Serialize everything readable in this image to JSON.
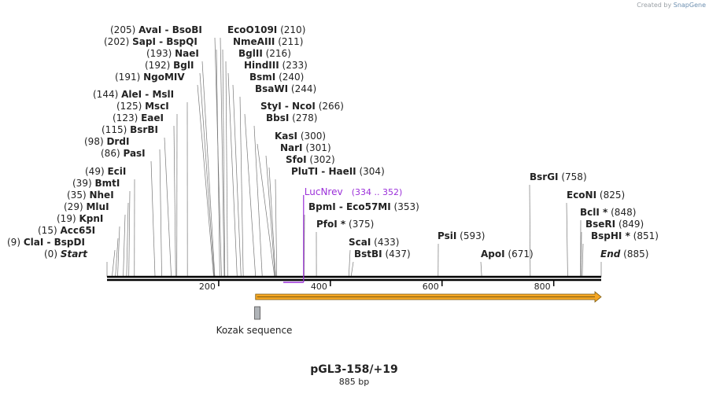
{
  "credit": {
    "prefix": "Created by",
    "brand": "SnapGene"
  },
  "plasmid": {
    "name": "pGL3-158/+19",
    "length_label": "885 bp"
  },
  "ruler": {
    "min": 0,
    "max": 885,
    "ticks": [
      200,
      400,
      600,
      800
    ]
  },
  "sites": [
    {
      "name": "AvaI",
      "pair": "BsoBI",
      "pos": 205,
      "label": "(205)"
    },
    {
      "name": "SapI",
      "pair": "BspQI",
      "pos": 202,
      "label": "(202)"
    },
    {
      "name": "NaeI",
      "pos": 193,
      "label": "(193)"
    },
    {
      "name": "BglI",
      "pos": 192,
      "label": "(192)"
    },
    {
      "name": "NgoMIV",
      "pos": 191,
      "label": "(191)"
    },
    {
      "name": "AleI",
      "pair": "MslI",
      "pos": 144,
      "label": "(144)"
    },
    {
      "name": "MscI",
      "pos": 125,
      "label": "(125)"
    },
    {
      "name": "EaeI",
      "pos": 123,
      "label": "(123)"
    },
    {
      "name": "BsrBI",
      "pos": 115,
      "label": "(115)"
    },
    {
      "name": "DrdI",
      "pos": 98,
      "label": "(98)"
    },
    {
      "name": "PasI",
      "pos": 86,
      "label": "(86)"
    },
    {
      "name": "EciI",
      "pos": 49,
      "label": "(49)"
    },
    {
      "name": "BmtI",
      "pos": 39,
      "label": "(39)"
    },
    {
      "name": "NheI",
      "pos": 35,
      "label": "(35)"
    },
    {
      "name": "MluI",
      "pos": 29,
      "label": "(29)"
    },
    {
      "name": "KpnI",
      "pos": 19,
      "label": "(19)"
    },
    {
      "name": "Acc65I",
      "pos": 15,
      "label": "(15)"
    },
    {
      "name": "ClaI",
      "pair": "BspDI",
      "pos": 9,
      "label": "(9)"
    },
    {
      "name": "Start",
      "pos": 0,
      "label": "(0)",
      "italic": true
    },
    {
      "name": "EcoO109I",
      "pos": 210,
      "label": "(210)"
    },
    {
      "name": "NmeAIII",
      "pos": 211,
      "label": "(211)"
    },
    {
      "name": "BglII",
      "pos": 216,
      "label": "(216)"
    },
    {
      "name": "HindIII",
      "pos": 233,
      "label": "(233)"
    },
    {
      "name": "BsmI",
      "pos": 240,
      "label": "(240)"
    },
    {
      "name": "BsaWI",
      "pos": 244,
      "label": "(244)"
    },
    {
      "name": "StyI",
      "pair": "NcoI",
      "pos": 266,
      "label": "(266)"
    },
    {
      "name": "BbsI",
      "pos": 278,
      "label": "(278)"
    },
    {
      "name": "KasI",
      "pos": 300,
      "label": "(300)"
    },
    {
      "name": "NarI",
      "pos": 301,
      "label": "(301)"
    },
    {
      "name": "SfoI",
      "pos": 302,
      "label": "(302)"
    },
    {
      "name": "PluTI",
      "pair": "HaeII",
      "pos": 304,
      "label": "(304)"
    },
    {
      "name": "BpmI",
      "pair": "Eco57MI",
      "pos": 353,
      "label": "(353)"
    },
    {
      "name": "PfoI *",
      "pos": 375,
      "label": "(375)"
    },
    {
      "name": "ScaI",
      "pos": 433,
      "label": "(433)"
    },
    {
      "name": "BstBI",
      "pos": 437,
      "label": "(437)"
    },
    {
      "name": "PsiI",
      "pos": 593,
      "label": "(593)"
    },
    {
      "name": "ApoI",
      "pos": 671,
      "label": "(671)"
    },
    {
      "name": "BsrGI",
      "pos": 758,
      "label": "(758)"
    },
    {
      "name": "EcoNI",
      "pos": 825,
      "label": "(825)"
    },
    {
      "name": "BclI *",
      "pos": 848,
      "label": "(848)"
    },
    {
      "name": "BseRI",
      "pos": 849,
      "label": "(849)"
    },
    {
      "name": "BspHI *",
      "pos": 851,
      "label": "(851)"
    },
    {
      "name": "End",
      "pos": 885,
      "label": "(885)",
      "italic": true
    }
  ],
  "primer": {
    "name": "LucNrev",
    "range": "(334 .. 352)",
    "start": 334,
    "end": 352,
    "color": "#9b30d9"
  },
  "feature": {
    "type": "arrow",
    "start": 266,
    "end": 885,
    "color": "#f5a623",
    "stroke": "#7a5a10"
  },
  "kozak": {
    "label": "Kozak sequence",
    "start": 260,
    "end": 270
  },
  "colors": {
    "primer": "#9b30d9",
    "feature": "#f5a623",
    "kozak": "#b0b4b8"
  }
}
